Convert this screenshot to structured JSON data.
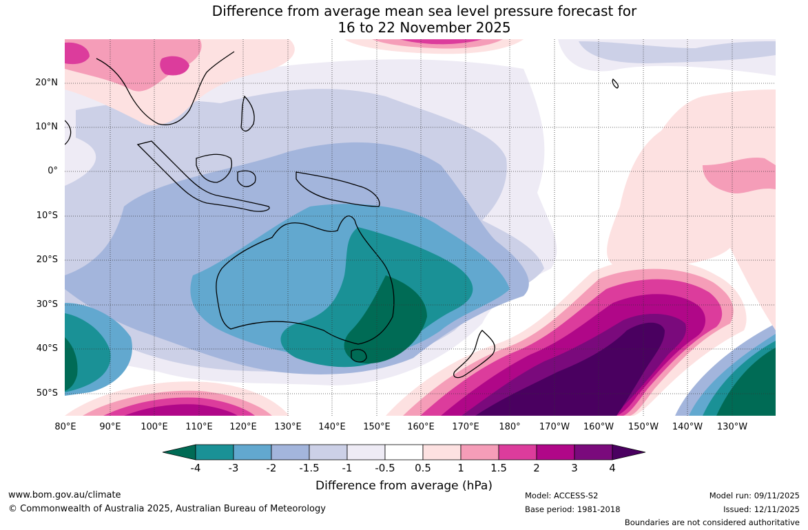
{
  "title": {
    "line1": "Difference from average mean sea level pressure forecast for",
    "line2": "16 to 22 November 2025"
  },
  "lat_labels": [
    "20°N",
    "10°N",
    "0°",
    "10°S",
    "20°S",
    "30°S",
    "40°S",
    "50°S"
  ],
  "lon_labels": [
    "80°E",
    "90°E",
    "100°E",
    "110°E",
    "120°E",
    "130°E",
    "140°E",
    "150°E",
    "160°E",
    "170°E",
    "180°",
    "170°W",
    "160°W",
    "150°W",
    "140°W",
    "130°W"
  ],
  "colorbar": {
    "title": "Difference from average (hPa)",
    "ticks": [
      "-4",
      "-3",
      "-2",
      "-1.5",
      "-1",
      "-0.5",
      "0.5",
      "1",
      "1.5",
      "2",
      "3",
      "4"
    ],
    "colors": [
      "#006b55",
      "#1a9196",
      "#62a8cf",
      "#a3b5dc",
      "#ccd0e7",
      "#eeebf5",
      "#ffffff",
      "#fde1e1",
      "#f59db8",
      "#dc3c9c",
      "#b00788",
      "#7a0a7c",
      "#4a0060"
    ]
  },
  "footer": {
    "website": "www.bom.gov.au/climate",
    "copyright": "© Commonwealth of Australia 2025, Australian Bureau of Meteorology",
    "model": "Model: ACCESS-S2",
    "base_period": "Base period: 1981-2018",
    "model_run": "Model run: 09/11/2025",
    "issued": "Issued: 12/11/2025",
    "disclaimer": "Boundaries are not considered authoritative"
  }
}
